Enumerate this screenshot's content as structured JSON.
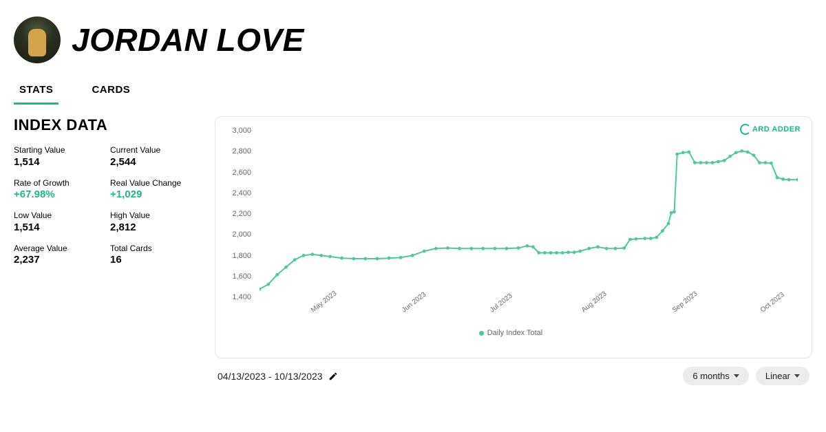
{
  "player_name": "JORDAN LOVE",
  "tabs": [
    {
      "label": "STATS",
      "active": true
    },
    {
      "label": "CARDS",
      "active": false
    }
  ],
  "section_title": "INDEX DATA",
  "stats": {
    "starting_value": {
      "label": "Starting Value",
      "value": "1,514"
    },
    "current_value": {
      "label": "Current Value",
      "value": "2,544"
    },
    "rate_of_growth": {
      "label": "Rate of Growth",
      "value": "+67.98%",
      "green": true
    },
    "real_value_change": {
      "label": "Real Value Change",
      "value": "+1,029",
      "green": true
    },
    "low_value": {
      "label": "Low Value",
      "value": "1,514"
    },
    "high_value": {
      "label": "High Value",
      "value": "2,812"
    },
    "average_value": {
      "label": "Average Value",
      "value": "2,237"
    },
    "total_cards": {
      "label": "Total Cards",
      "value": "16"
    }
  },
  "chart": {
    "type": "line",
    "series_name": "Daily Index Total",
    "series_color": "#4fc99a",
    "line_width": 2,
    "marker_radius": 2.4,
    "background_color": "#ffffff",
    "border_color": "#e5e5e5",
    "axis_font_color": "#666666",
    "axis_font_size": 11,
    "ylim": [
      1400,
      3000
    ],
    "ytick_step": 200,
    "y_ticks": [
      "3,000",
      "2,800",
      "2,600",
      "2,400",
      "2,200",
      "2,000",
      "1,800",
      "1,600",
      "1,400"
    ],
    "xlim": [
      0,
      183
    ],
    "x_ticks": [
      {
        "label": "May 2023",
        "pos": 17
      },
      {
        "label": "Jun 2023",
        "pos": 48
      },
      {
        "label": "Jul 2023",
        "pos": 78
      },
      {
        "label": "Aug 2023",
        "pos": 109
      },
      {
        "label": "Sep 2023",
        "pos": 140
      },
      {
        "label": "Oct 2023",
        "pos": 170
      }
    ],
    "data": [
      [
        0,
        1514
      ],
      [
        3,
        1560
      ],
      [
        6,
        1650
      ],
      [
        9,
        1720
      ],
      [
        12,
        1790
      ],
      [
        15,
        1830
      ],
      [
        18,
        1840
      ],
      [
        21,
        1830
      ],
      [
        24,
        1820
      ],
      [
        28,
        1805
      ],
      [
        32,
        1800
      ],
      [
        36,
        1800
      ],
      [
        40,
        1800
      ],
      [
        44,
        1805
      ],
      [
        48,
        1810
      ],
      [
        52,
        1830
      ],
      [
        56,
        1870
      ],
      [
        60,
        1895
      ],
      [
        64,
        1900
      ],
      [
        68,
        1895
      ],
      [
        72,
        1895
      ],
      [
        76,
        1895
      ],
      [
        80,
        1895
      ],
      [
        84,
        1895
      ],
      [
        88,
        1900
      ],
      [
        91,
        1920
      ],
      [
        93,
        1910
      ],
      [
        95,
        1855
      ],
      [
        97,
        1855
      ],
      [
        99,
        1855
      ],
      [
        101,
        1855
      ],
      [
        103,
        1855
      ],
      [
        105,
        1860
      ],
      [
        107,
        1860
      ],
      [
        109,
        1870
      ],
      [
        112,
        1895
      ],
      [
        115,
        1910
      ],
      [
        118,
        1895
      ],
      [
        121,
        1895
      ],
      [
        124,
        1900
      ],
      [
        126,
        1980
      ],
      [
        128,
        1985
      ],
      [
        131,
        1990
      ],
      [
        133,
        1990
      ],
      [
        135,
        2000
      ],
      [
        137,
        2060
      ],
      [
        139,
        2130
      ],
      [
        140,
        2230
      ],
      [
        141,
        2240
      ],
      [
        142,
        2780
      ],
      [
        144,
        2795
      ],
      [
        146,
        2800
      ],
      [
        148,
        2700
      ],
      [
        150,
        2700
      ],
      [
        152,
        2700
      ],
      [
        154,
        2700
      ],
      [
        156,
        2710
      ],
      [
        158,
        2720
      ],
      [
        160,
        2760
      ],
      [
        162,
        2795
      ],
      [
        164,
        2810
      ],
      [
        166,
        2800
      ],
      [
        168,
        2770
      ],
      [
        170,
        2700
      ],
      [
        172,
        2700
      ],
      [
        174,
        2695
      ],
      [
        176,
        2560
      ],
      [
        178,
        2545
      ],
      [
        180,
        2540
      ],
      [
        183,
        2540
      ]
    ],
    "logo_text": "ARD   ADDER"
  },
  "date_range": "04/13/2023 - 10/13/2023",
  "controls": {
    "range_selector": "6 months",
    "scale_selector": "Linear"
  }
}
